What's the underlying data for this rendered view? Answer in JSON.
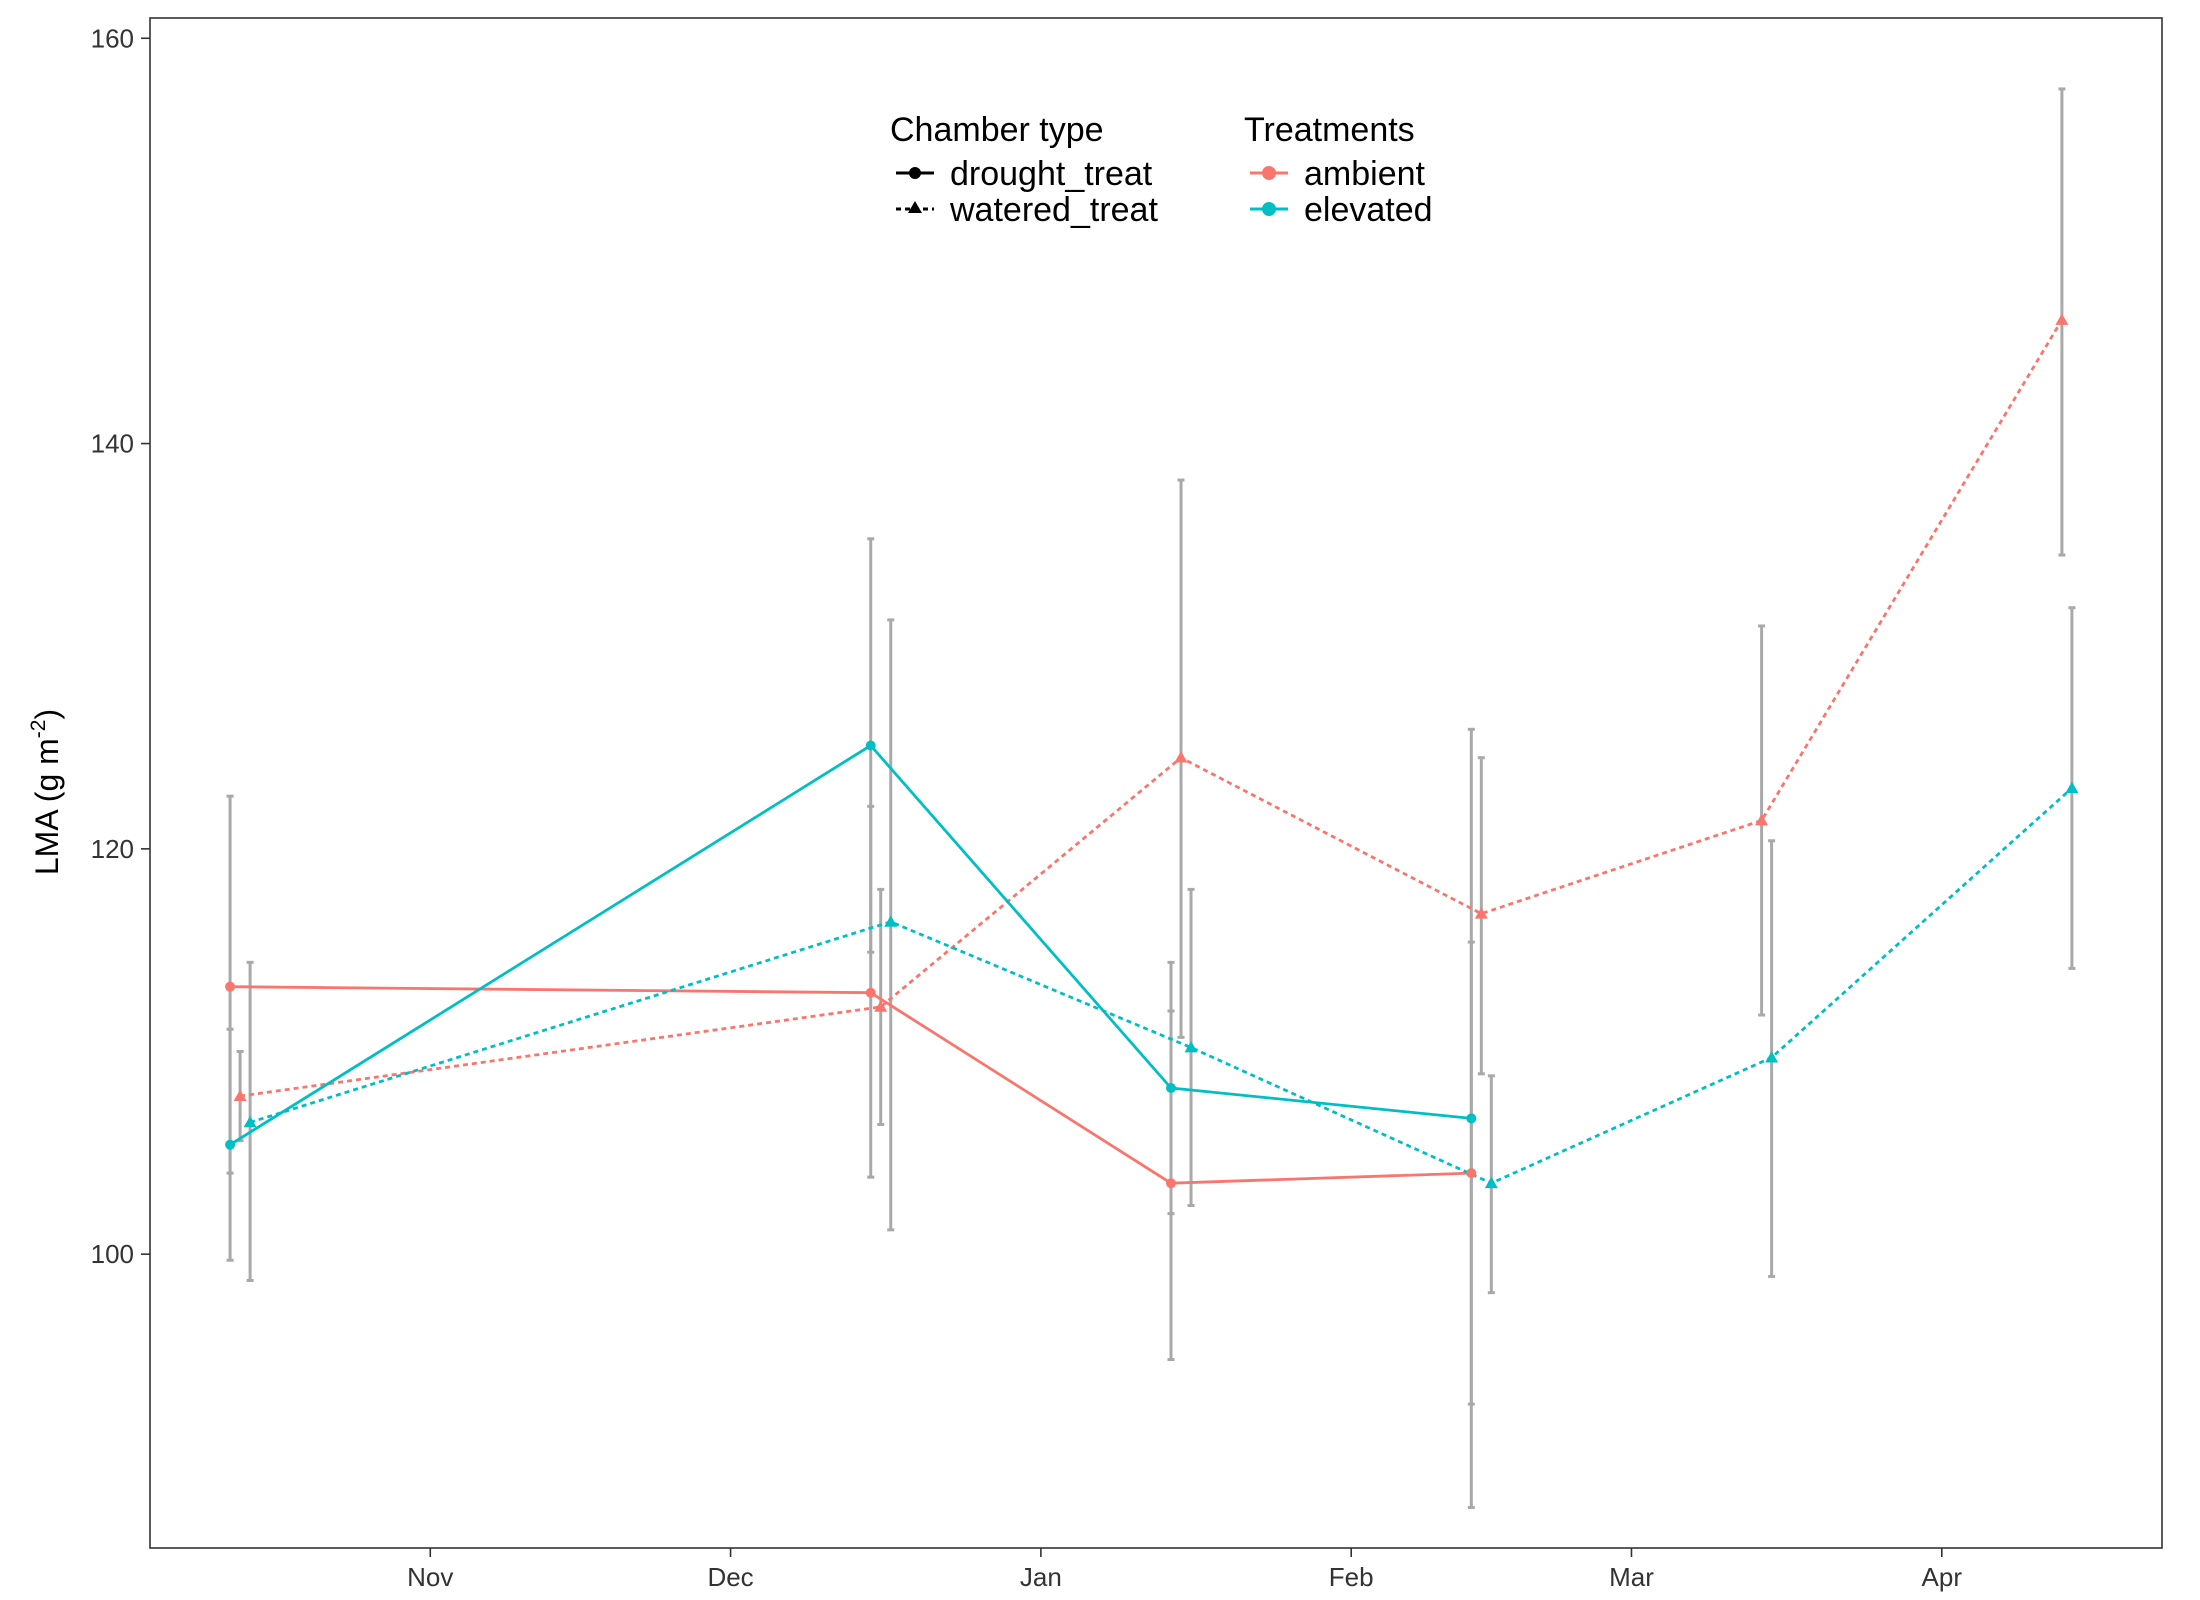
{
  "chart_data": {
    "type": "line",
    "title": "",
    "xlabel": "",
    "ylabel": "LMA (g m",
    "ylabel_sup": "-2",
    "ylabel_close": ")",
    "x_ticks": [
      "Nov",
      "Dec",
      "Jan",
      "Feb",
      "Mar",
      "Apr"
    ],
    "x_tick_dates": [
      "2012-11-01",
      "2012-12-01",
      "2013-01-01",
      "2013-02-01",
      "2013-03-01",
      "2013-04-01"
    ],
    "xlim": [
      "2012-10-04",
      "2013-04-23"
    ],
    "y_ticks": [
      100,
      120,
      140,
      160
    ],
    "ylim": [
      85.5,
      161
    ],
    "grid": false,
    "legend_position": "top-center",
    "colors": {
      "ambient": "#F8766D",
      "elevated": "#00BFC4",
      "errorbar": "#A9A9A9"
    },
    "legend": {
      "chamber_title": "Chamber type",
      "chamber_items": [
        {
          "label": "drought_treat",
          "linetype": "solid",
          "shape": "circle"
        },
        {
          "label": "watered_treat",
          "linetype": "dotted",
          "shape": "triangle"
        }
      ],
      "treatment_title": "Treatments",
      "treatment_items": [
        {
          "label": "ambient",
          "color": "#F8766D"
        },
        {
          "label": "elevated",
          "color": "#00BFC4"
        }
      ]
    },
    "series": [
      {
        "name": "ambient · drought_treat",
        "treatment": "ambient",
        "chamber": "drought_treat",
        "points": [
          {
            "x": "2012-10-12",
            "y": 113.2,
            "ymin": 104.0,
            "ymax": 122.6
          },
          {
            "x": "2012-12-15",
            "y": 112.9,
            "ymin": 103.8,
            "ymax": 122.1
          },
          {
            "x": "2013-01-14",
            "y": 103.5,
            "ymin": 94.8,
            "ymax": 112.0
          },
          {
            "x": "2013-02-13",
            "y": 104.0,
            "ymin": 92.6,
            "ymax": 115.4
          }
        ]
      },
      {
        "name": "ambient · watered_treat",
        "treatment": "ambient",
        "chamber": "watered_treat",
        "points": [
          {
            "x": "2012-10-13",
            "y": 107.8,
            "ymin": 105.6,
            "ymax": 110.0
          },
          {
            "x": "2012-12-16",
            "y": 112.2,
            "ymin": 106.4,
            "ymax": 118.0
          },
          {
            "x": "2013-01-15",
            "y": 124.5,
            "ymin": 110.7,
            "ymax": 138.2
          },
          {
            "x": "2013-02-14",
            "y": 116.8,
            "ymin": 108.9,
            "ymax": 124.5
          },
          {
            "x": "2013-03-14",
            "y": 121.4,
            "ymin": 111.8,
            "ymax": 131.0
          },
          {
            "x": "2013-04-13",
            "y": 146.1,
            "ymin": 134.5,
            "ymax": 157.5
          }
        ]
      },
      {
        "name": "elevated · drought_treat",
        "treatment": "elevated",
        "chamber": "drought_treat",
        "points": [
          {
            "x": "2012-10-12",
            "y": 105.4,
            "ymin": 99.7,
            "ymax": 111.1
          },
          {
            "x": "2012-12-15",
            "y": 125.1,
            "ymin": 114.9,
            "ymax": 135.3
          },
          {
            "x": "2013-01-14",
            "y": 108.2,
            "ymin": 102.0,
            "ymax": 114.4
          },
          {
            "x": "2013-02-13",
            "y": 106.7,
            "ymin": 87.5,
            "ymax": 125.9
          }
        ]
      },
      {
        "name": "elevated · watered_treat",
        "treatment": "elevated",
        "chamber": "watered_treat",
        "points": [
          {
            "x": "2012-10-14",
            "y": 106.5,
            "ymin": 98.7,
            "ymax": 114.4
          },
          {
            "x": "2012-12-17",
            "y": 116.4,
            "ymin": 101.2,
            "ymax": 131.3
          },
          {
            "x": "2013-01-16",
            "y": 110.2,
            "ymin": 102.4,
            "ymax": 118.0
          },
          {
            "x": "2013-02-15",
            "y": 103.5,
            "ymin": 98.1,
            "ymax": 108.8
          },
          {
            "x": "2013-03-15",
            "y": 109.7,
            "ymin": 98.9,
            "ymax": 120.4
          },
          {
            "x": "2013-04-14",
            "y": 123.0,
            "ymin": 114.1,
            "ymax": 131.9
          }
        ]
      }
    ]
  }
}
